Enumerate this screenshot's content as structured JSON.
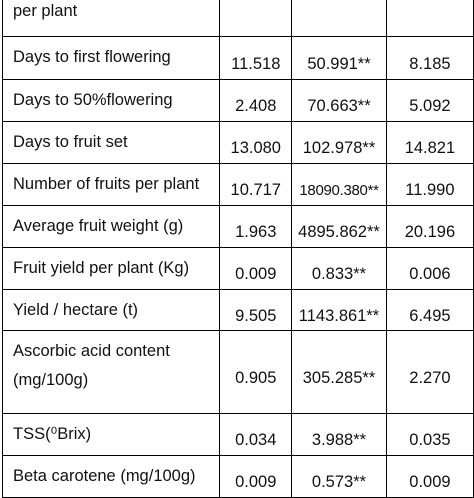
{
  "table": {
    "rows": [
      {
        "label": [
          "per plant"
        ]
      },
      {
        "label": [
          "Days to first flowering"
        ],
        "cells": [
          "11.518",
          "50.991**",
          "8.185"
        ]
      },
      {
        "label": [
          "Days to 50%flowering"
        ],
        "cells": [
          "2.408",
          "70.663**",
          "5.092"
        ]
      },
      {
        "label": [
          "Days to fruit set"
        ],
        "cells": [
          "13.080",
          "102.978**",
          "14.821"
        ]
      },
      {
        "label": [
          "Number of fruits per plant"
        ],
        "cells": [
          "10.717",
          "18090.380**",
          "11.990"
        ]
      },
      {
        "label": [
          "Average fruit weight (g)"
        ],
        "cells": [
          "1.963",
          "4895.862**",
          "20.196"
        ]
      },
      {
        "label": [
          "Fruit yield per plant (Kg)"
        ],
        "cells": [
          "0.009",
          "0.833**",
          "0.006"
        ]
      },
      {
        "label": [
          "Yield / hectare (t)"
        ],
        "cells": [
          "9.505",
          "1143.861**",
          "6.495"
        ]
      },
      {
        "label": [
          "Ascorbic acid content",
          "(mg/100g)"
        ],
        "cells": [
          "0.905",
          "305.285**",
          "2.270"
        ]
      },
      {
        "label": [
          "TSS(⁰Brix)"
        ],
        "cells": [
          "0.034",
          "3.988**",
          "0.035"
        ]
      },
      {
        "label": [
          "Beta carotene (mg/100g)"
        ],
        "cells": [
          "0.009",
          "0.573**",
          "0.009"
        ]
      }
    ]
  }
}
